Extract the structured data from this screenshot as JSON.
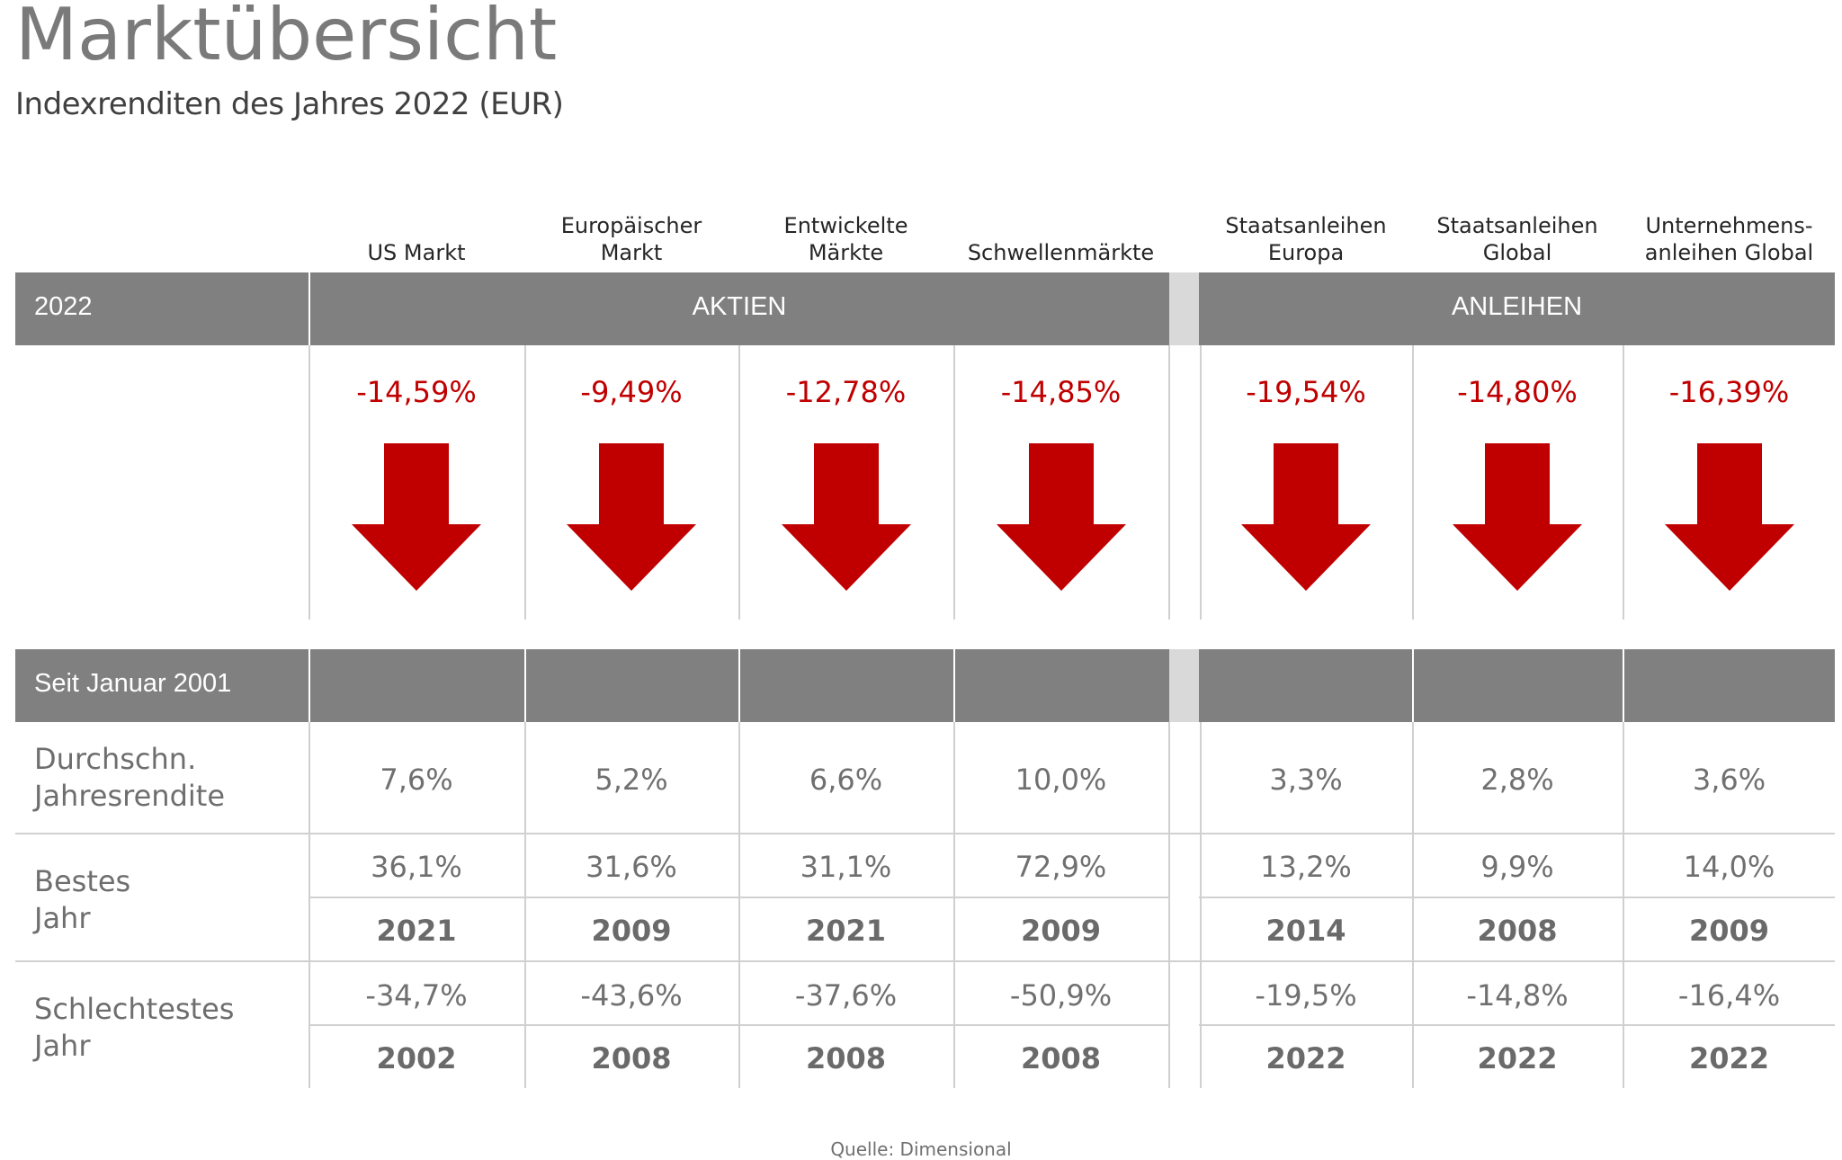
{
  "title": "Marktübersicht",
  "subtitle": "Indexrenditen des Jahres 2022 (EUR)",
  "columns": [
    {
      "header": "US Markt",
      "return_2022": "-14,59%",
      "avg": "7,6%",
      "best": "36,1%",
      "best_year": "2021",
      "worst": "-34,7%",
      "worst_year": "2002"
    },
    {
      "header": "Europäischer\nMarkt",
      "return_2022": "-9,49%",
      "avg": "5,2%",
      "best": "31,6%",
      "best_year": "2009",
      "worst": "-43,6%",
      "worst_year": "2008"
    },
    {
      "header": "Entwickelte\nMärkte",
      "return_2022": "-12,78%",
      "avg": "6,6%",
      "best": "31,1%",
      "best_year": "2021",
      "worst": "-37,6%",
      "worst_year": "2008"
    },
    {
      "header": "Schwellenmärkte",
      "return_2022": "-14,85%",
      "avg": "10,0%",
      "best": "72,9%",
      "best_year": "2009",
      "worst": "-50,9%",
      "worst_year": "2008"
    },
    {
      "header": "Staatsanleihen\nEuropa",
      "return_2022": "-19,54%",
      "avg": "3,3%",
      "best": "13,2%",
      "best_year": "2014",
      "worst": "-19,5%",
      "worst_year": "2022"
    },
    {
      "header": "Staatsanleihen\nGlobal",
      "return_2022": "-14,80%",
      "avg": "2,8%",
      "best": "9,9%",
      "best_year": "2008",
      "worst": "-14,8%",
      "worst_year": "2022"
    },
    {
      "header": "Unternehmens-\nanleihen Global",
      "return_2022": "-16,39%",
      "avg": "3,6%",
      "best": "14,0%",
      "best_year": "2009",
      "worst": "-16,4%",
      "worst_year": "2022"
    }
  ],
  "band1": {
    "year_label": "2022",
    "equities_label": "AKTIEN",
    "bonds_label": "ANLEIHEN"
  },
  "band2": {
    "label": "Seit Januar 2001"
  },
  "rows": {
    "avg_label": "Durchschn.\nJahresrendite",
    "best_label": "Bestes\nJahr",
    "worst_label": "Schlechtestes\nJahr"
  },
  "direction_icon": "down-arrow-icon",
  "colors": {
    "negative": "#c00000",
    "band": "#808080",
    "gap": "#d9d9d9"
  },
  "source": "Quelle: Dimensional"
}
